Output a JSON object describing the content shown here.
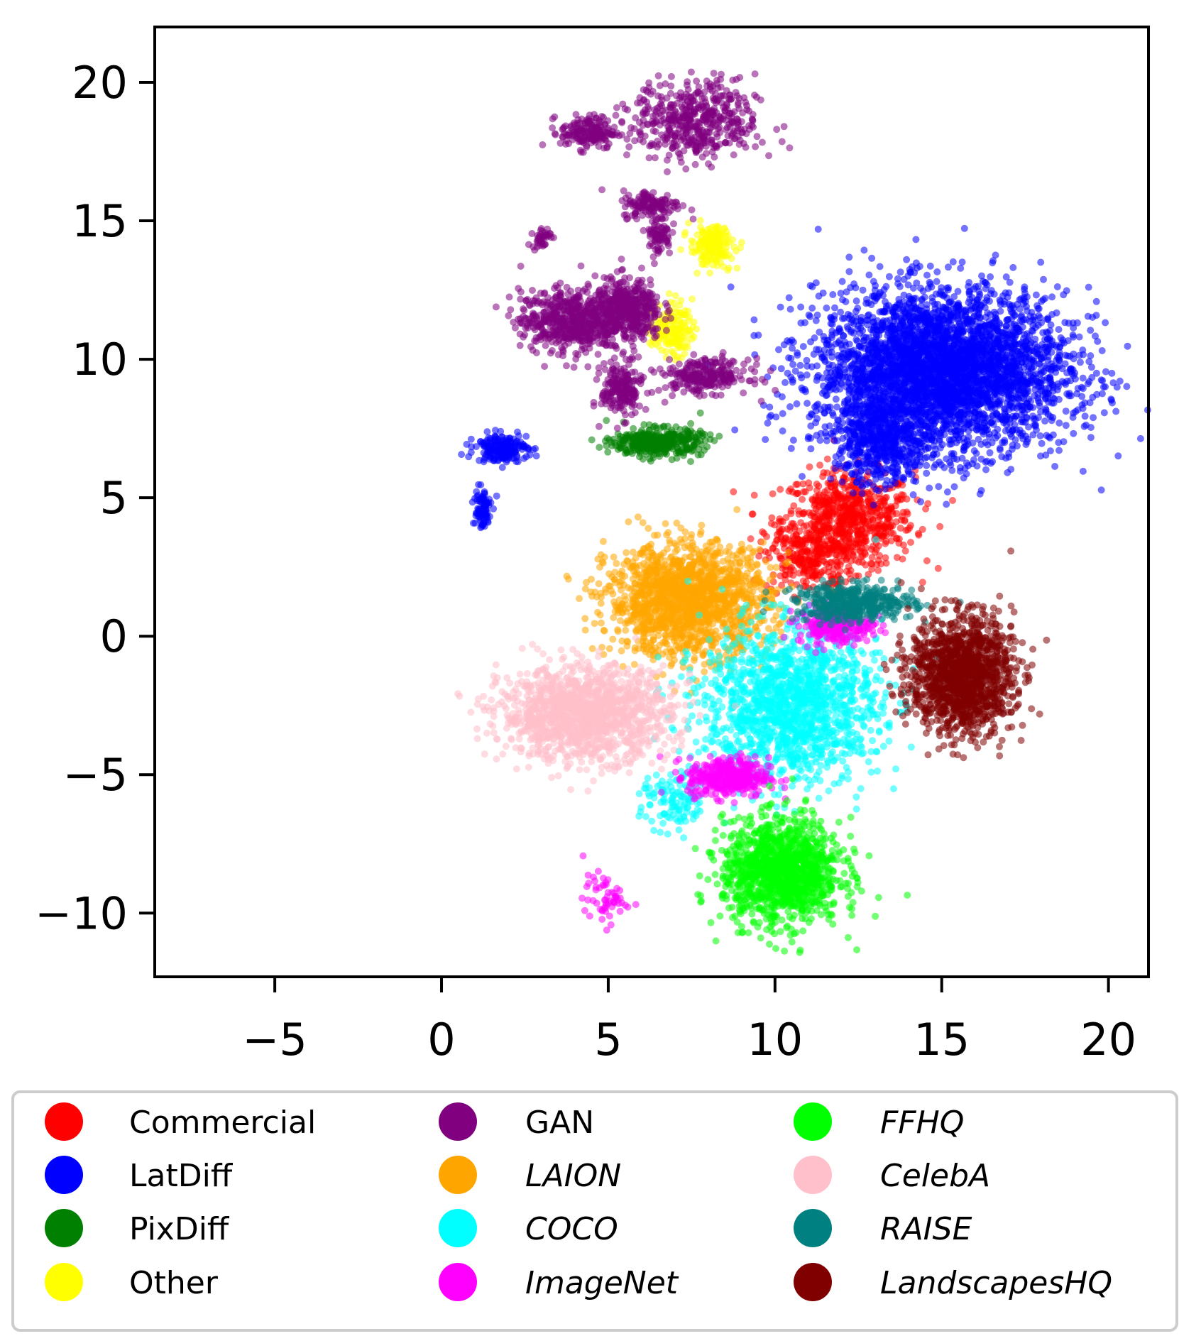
{
  "chart_data": {
    "type": "scatter",
    "title": "",
    "xlabel": "",
    "ylabel": "",
    "xlim": [
      -8.6,
      21.2
    ],
    "ylim": [
      -12.3,
      22.0
    ],
    "xticks": [
      -5,
      0,
      5,
      10,
      15,
      20
    ],
    "xtick_labels": [
      "−5",
      "0",
      "5",
      "10",
      "15",
      "20"
    ],
    "yticks": [
      -10,
      -5,
      0,
      5,
      10,
      15,
      20
    ],
    "ytick_labels": [
      "−10",
      "−5",
      "0",
      "5",
      "10",
      "15",
      "20"
    ],
    "grid": false,
    "legend_position": "bottom, outside plot",
    "series": [
      {
        "name": "Commercial",
        "color": "#ff0000",
        "italic": false,
        "clusters": [
          {
            "cx": 12.2,
            "cy": 4.2,
            "rx": 1.8,
            "ry": 1.6,
            "n": 700
          },
          {
            "cx": 11.0,
            "cy": 2.8,
            "rx": 1.2,
            "ry": 1.2,
            "n": 250
          }
        ]
      },
      {
        "name": "LatDiff",
        "color": "#0000ff",
        "italic": false,
        "clusters": [
          {
            "cx": 15.0,
            "cy": 9.6,
            "rx": 3.4,
            "ry": 2.6,
            "n": 3800
          },
          {
            "cx": 13.2,
            "cy": 7.0,
            "rx": 1.3,
            "ry": 1.4,
            "n": 500
          },
          {
            "cx": 1.8,
            "cy": 6.8,
            "rx": 0.7,
            "ry": 0.45,
            "n": 200
          },
          {
            "cx": 1.2,
            "cy": 4.6,
            "rx": 0.25,
            "ry": 0.7,
            "n": 90
          }
        ]
      },
      {
        "name": "PixDiff",
        "color": "#008000",
        "italic": false,
        "clusters": [
          {
            "cx": 6.5,
            "cy": 7.0,
            "rx": 1.2,
            "ry": 0.45,
            "n": 400
          }
        ]
      },
      {
        "name": "Other",
        "color": "#ffff00",
        "italic": false,
        "clusters": [
          {
            "cx": 8.1,
            "cy": 14.1,
            "rx": 0.6,
            "ry": 0.65,
            "n": 180
          },
          {
            "cx": 6.9,
            "cy": 11.1,
            "rx": 0.55,
            "ry": 0.9,
            "n": 160
          }
        ]
      },
      {
        "name": "GAN",
        "color": "#800080",
        "italic": false,
        "clusters": [
          {
            "cx": 7.6,
            "cy": 18.6,
            "rx": 1.7,
            "ry": 1.3,
            "n": 500
          },
          {
            "cx": 4.4,
            "cy": 18.2,
            "rx": 0.75,
            "ry": 0.55,
            "n": 180
          },
          {
            "cx": 6.3,
            "cy": 15.6,
            "rx": 0.8,
            "ry": 0.45,
            "n": 130
          },
          {
            "cx": 6.5,
            "cy": 14.5,
            "rx": 0.35,
            "ry": 0.7,
            "n": 80
          },
          {
            "cx": 3.0,
            "cy": 14.4,
            "rx": 0.25,
            "ry": 0.35,
            "n": 40
          },
          {
            "cx": 3.9,
            "cy": 11.4,
            "rx": 1.4,
            "ry": 1.0,
            "n": 600
          },
          {
            "cx": 5.6,
            "cy": 11.8,
            "rx": 0.9,
            "ry": 1.0,
            "n": 420
          },
          {
            "cx": 7.9,
            "cy": 9.4,
            "rx": 1.2,
            "ry": 0.55,
            "n": 260
          },
          {
            "cx": 5.4,
            "cy": 8.9,
            "rx": 0.55,
            "ry": 0.9,
            "n": 200
          }
        ]
      },
      {
        "name": "LAION",
        "color": "#ffa500",
        "italic": true,
        "clusters": [
          {
            "cx": 7.4,
            "cy": 1.3,
            "rx": 2.2,
            "ry": 1.8,
            "n": 1600
          }
        ]
      },
      {
        "name": "COCO",
        "color": "#00ffff",
        "italic": true,
        "clusters": [
          {
            "cx": 10.5,
            "cy": -2.4,
            "rx": 2.4,
            "ry": 2.5,
            "n": 1500
          },
          {
            "cx": 7.0,
            "cy": -6.0,
            "rx": 0.9,
            "ry": 1.0,
            "n": 120
          }
        ]
      },
      {
        "name": "ImageNet",
        "color": "#ff00ff",
        "italic": true,
        "clusters": [
          {
            "cx": 8.6,
            "cy": -5.1,
            "rx": 1.1,
            "ry": 0.65,
            "n": 400
          },
          {
            "cx": 11.8,
            "cy": 0.4,
            "rx": 1.0,
            "ry": 0.6,
            "n": 260
          },
          {
            "cx": 4.9,
            "cy": -9.5,
            "rx": 0.6,
            "ry": 0.8,
            "n": 60
          }
        ]
      },
      {
        "name": "FFHQ",
        "color": "#00ff00",
        "italic": true,
        "clusters": [
          {
            "cx": 10.2,
            "cy": -8.5,
            "rx": 1.6,
            "ry": 1.7,
            "n": 1300
          }
        ]
      },
      {
        "name": "CelebA",
        "color": "#ffc0cb",
        "italic": true,
        "clusters": [
          {
            "cx": 4.3,
            "cy": -2.8,
            "rx": 2.3,
            "ry": 1.5,
            "n": 1400
          }
        ]
      },
      {
        "name": "RAISE",
        "color": "#008080",
        "italic": true,
        "clusters": [
          {
            "cx": 12.4,
            "cy": 1.2,
            "rx": 1.6,
            "ry": 0.6,
            "n": 450
          }
        ]
      },
      {
        "name": "LandscapesHQ",
        "color": "#800000",
        "italic": true,
        "clusters": [
          {
            "cx": 15.6,
            "cy": -1.4,
            "rx": 1.4,
            "ry": 1.9,
            "n": 1400
          }
        ]
      }
    ]
  }
}
